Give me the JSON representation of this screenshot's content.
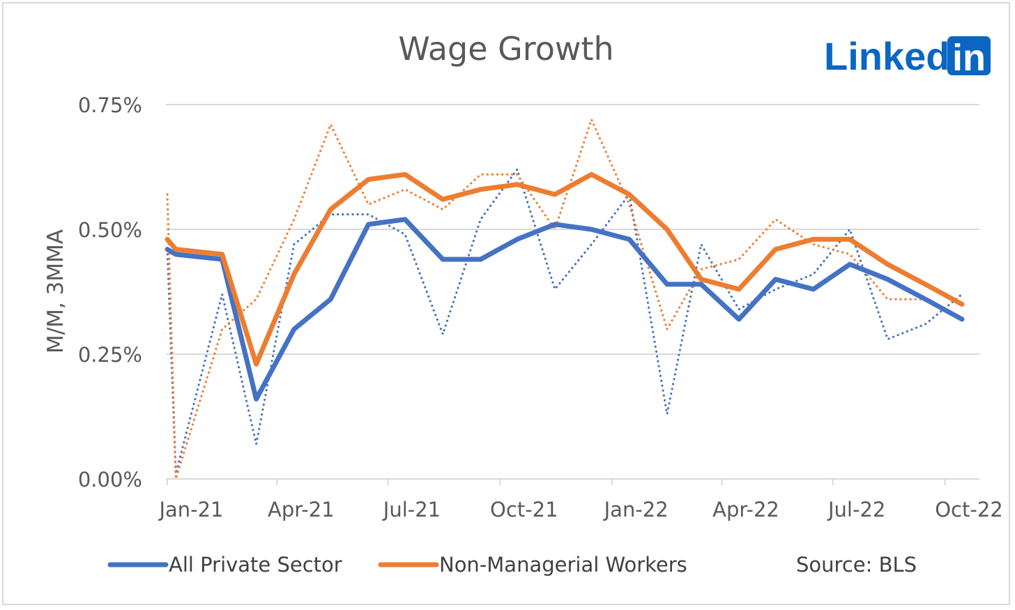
{
  "logo": {
    "text": "Linked",
    "in": "in"
  },
  "chart_data": {
    "type": "line",
    "title": "Wage Growth",
    "ylabel": "M/M, 3MMA",
    "xlabel": "",
    "source": "Source: BLS",
    "ylim": [
      0,
      0.75
    ],
    "yticks": [
      0,
      0.25,
      0.5,
      0.75
    ],
    "ytick_labels": [
      "0.00%",
      "0.25%",
      "0.50%",
      "0.75%"
    ],
    "xtick_labels": [
      "Jan-21",
      "Apr-21",
      "Jul-21",
      "Oct-21",
      "Jan-22",
      "Apr-22",
      "Jul-22",
      "Oct-22"
    ],
    "x": [
      "2021-01-01",
      "2021-01-08",
      "2021-02",
      "2021-03",
      "2021-04",
      "2021-05",
      "2021-06",
      "2021-07",
      "2021-08",
      "2021-09",
      "2021-10",
      "2021-11",
      "2021-12",
      "2022-01",
      "2022-02",
      "2022-03",
      "2022-04",
      "2022-05",
      "2022-06",
      "2022-07",
      "2022-08",
      "2022-09",
      "2022-10"
    ],
    "grid": true,
    "legend_position": "bottom",
    "series": [
      {
        "name": "All Private Sector",
        "style": "solid",
        "color": "#4472c4",
        "values": [
          0.46,
          0.45,
          0.44,
          0.16,
          0.3,
          0.36,
          0.51,
          0.52,
          0.44,
          0.44,
          0.48,
          0.51,
          0.5,
          0.48,
          0.39,
          0.39,
          0.32,
          0.4,
          0.38,
          0.43,
          0.4,
          0.36,
          0.32
        ]
      },
      {
        "name": "Non-Managerial Workers",
        "style": "solid",
        "color": "#ed7d31",
        "values": [
          0.48,
          0.46,
          0.45,
          0.23,
          0.41,
          0.54,
          0.6,
          0.61,
          0.56,
          0.58,
          0.59,
          0.57,
          0.61,
          0.57,
          0.5,
          0.4,
          0.38,
          0.46,
          0.48,
          0.48,
          0.43,
          0.39,
          0.35
        ]
      },
      {
        "style": "dotted",
        "color": "#4472c4",
        "values": [
          0.46,
          0.01,
          0.37,
          0.07,
          0.47,
          0.53,
          0.53,
          0.49,
          0.29,
          0.52,
          0.62,
          0.38,
          0.47,
          0.57,
          0.13,
          0.47,
          0.34,
          0.38,
          0.41,
          0.5,
          0.28,
          0.31,
          0.37
        ]
      },
      {
        "style": "dotted",
        "color": "#ed7d31",
        "values": [
          0.57,
          0.0,
          0.3,
          0.36,
          0.52,
          0.71,
          0.55,
          0.58,
          0.54,
          0.61,
          0.61,
          0.5,
          0.72,
          0.55,
          0.3,
          0.42,
          0.44,
          0.52,
          0.47,
          0.45,
          0.36,
          0.36,
          0.32
        ]
      }
    ]
  }
}
